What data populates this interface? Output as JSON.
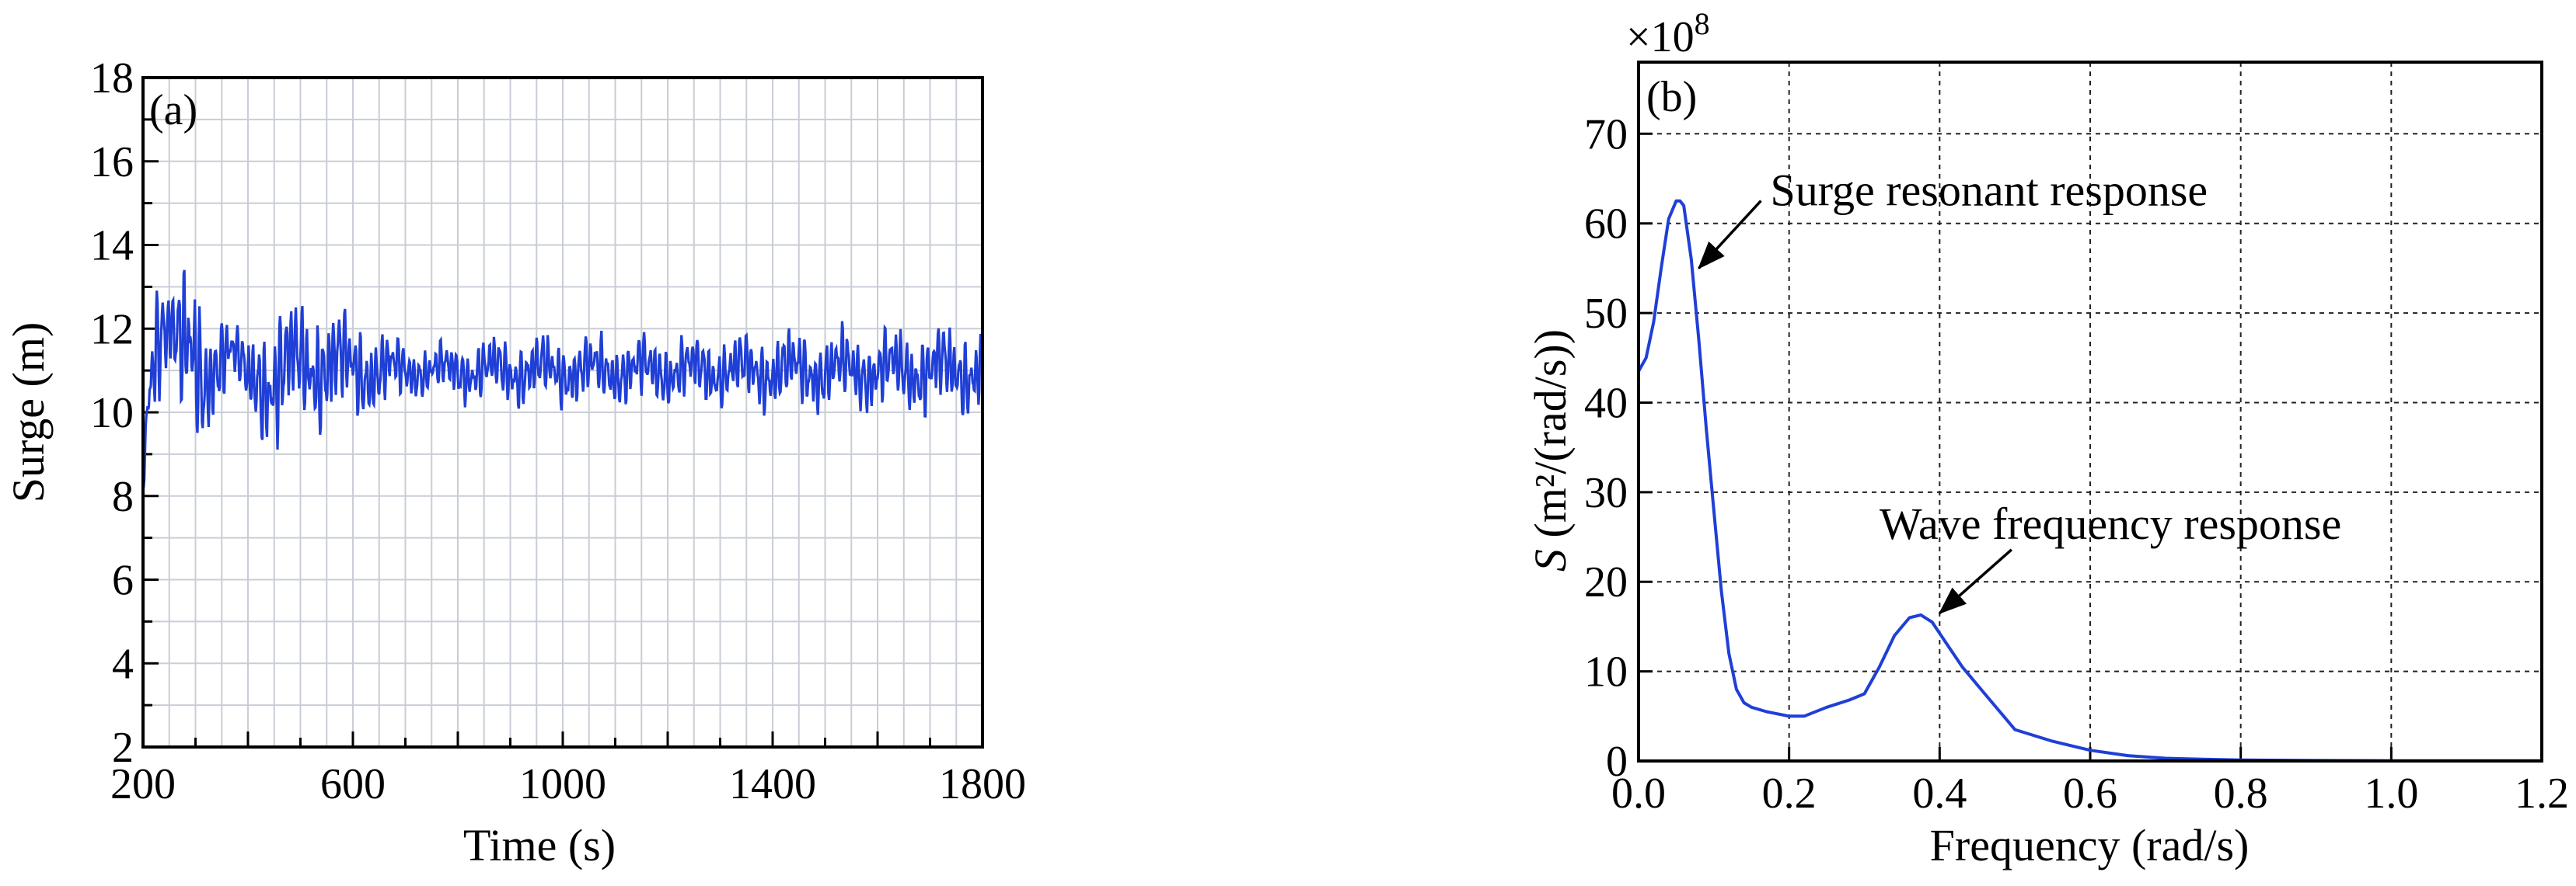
{
  "chart_data": [
    {
      "panel_label": "(a)",
      "type": "line",
      "xlabel": "Time (s)",
      "ylabel": "Surge (m)",
      "xlim": [
        200,
        1800
      ],
      "ylim": [
        2,
        18
      ],
      "xticks": [
        200,
        600,
        1000,
        1400,
        1800
      ],
      "yticks": [
        2,
        4,
        6,
        8,
        10,
        12,
        14,
        16,
        18
      ],
      "grid": true,
      "line_color": "#1f3fd6",
      "series": [
        {
          "anchor_x": [
            200,
            210,
            225,
            240,
            255,
            270,
            285,
            300,
            315,
            330,
            345,
            360,
            380,
            400,
            430,
            460,
            490,
            520,
            550,
            580,
            620,
            660,
            700,
            750,
            800,
            900,
            1000,
            1100,
            1200,
            1300,
            1400,
            1500,
            1600,
            1700,
            1800
          ],
          "anchor_mean": [
            8.2,
            10.0,
            11.5,
            12.3,
            12.4,
            11.9,
            11.3,
            10.6,
            10.3,
            11.0,
            11.5,
            11.7,
            11.3,
            10.6,
            10.8,
            11.0,
            11.1,
            11.1,
            11.2,
            11.1,
            11.0,
            11.0,
            11.0,
            11.0,
            11.0,
            11.0,
            11.0,
            11.0,
            11.0,
            11.0,
            11.0,
            11.0,
            11.0,
            11.0,
            11.0
          ],
          "anchor_amp": [
            0.3,
            1.0,
            1.4,
            1.2,
            1.0,
            1.5,
            1.8,
            1.7,
            1.5,
            1.2,
            1.0,
            0.9,
            0.6,
            0.9,
            1.3,
            1.5,
            1.3,
            1.2,
            1.3,
            1.1,
            1.0,
            0.8,
            0.6,
            0.5,
            0.6,
            0.7,
            0.7,
            0.7,
            0.7,
            0.7,
            0.8,
            0.8,
            0.8,
            0.9,
            0.9
          ]
        }
      ]
    },
    {
      "panel_label": "(b)",
      "type": "line",
      "xlabel": "Frequency (rad/s)",
      "ylabel_italic": "S",
      "ylabel_rest": " (m²/(rad/s))",
      "y_multiplier_base": "×10",
      "y_multiplier_exp": "8",
      "xlim": [
        0,
        1.2
      ],
      "ylim": [
        0,
        78
      ],
      "xticks": [
        0.0,
        0.2,
        0.4,
        0.6,
        0.8,
        1.0,
        1.2
      ],
      "xtick_labels": [
        "0.0",
        "0.2",
        "0.4",
        "0.6",
        "0.8",
        "1.0",
        "1.2"
      ],
      "yticks": [
        0,
        10,
        20,
        30,
        40,
        50,
        60,
        70
      ],
      "grid": true,
      "line_color": "#1f3fd6",
      "series": [
        {
          "x": [
            0.0,
            0.01,
            0.02,
            0.03,
            0.04,
            0.05,
            0.055,
            0.06,
            0.07,
            0.08,
            0.09,
            0.1,
            0.11,
            0.12,
            0.13,
            0.14,
            0.15,
            0.17,
            0.2,
            0.22,
            0.25,
            0.28,
            0.3,
            0.32,
            0.34,
            0.36,
            0.375,
            0.39,
            0.41,
            0.43,
            0.46,
            0.5,
            0.55,
            0.6,
            0.65,
            0.7,
            0.75,
            0.8,
            0.9,
            1.0,
            1.1,
            1.2
          ],
          "y": [
            43.5,
            45.0,
            49.0,
            55.0,
            60.5,
            62.5,
            62.5,
            62.0,
            56.0,
            47.0,
            37.0,
            28.0,
            19.0,
            12.0,
            8.0,
            6.5,
            6.0,
            5.5,
            5.0,
            5.0,
            6.0,
            6.8,
            7.5,
            10.5,
            14.0,
            16.0,
            16.3,
            15.5,
            13.0,
            10.5,
            7.5,
            3.5,
            2.2,
            1.2,
            0.6,
            0.3,
            0.2,
            0.1,
            0.05,
            0.03,
            0.02,
            0.02
          ]
        }
      ],
      "annotations": [
        {
          "text": "Surge resonant response",
          "x": 0.175,
          "y": 62,
          "arrow_to": [
            0.08,
            55
          ]
        },
        {
          "text": "Wave frequency response",
          "x": 0.32,
          "y": 24.8,
          "arrow_to": [
            0.4,
            16.5
          ]
        }
      ]
    }
  ]
}
